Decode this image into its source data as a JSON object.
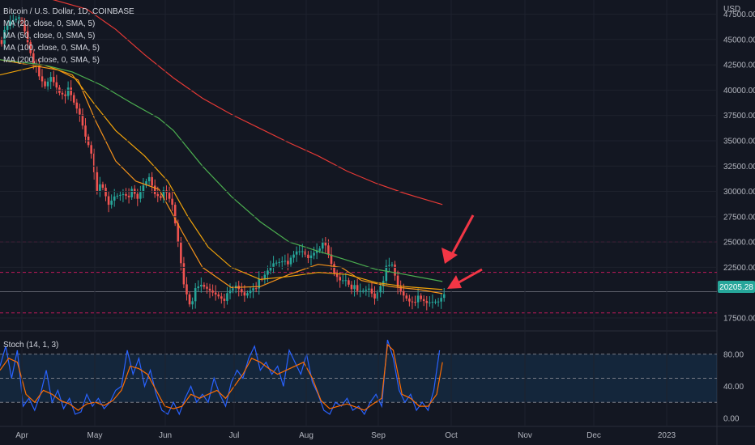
{
  "header": {
    "title": "Bitcoin / U.S. Dollar, 1D, COINBASE",
    "indicators": [
      "MA (20, close, 0, SMA, 5)",
      "MA (50, close, 0, SMA, 5)",
      "MA (100, close, 0, SMA, 5)",
      "MA (200, close, 0, SMA, 5)"
    ]
  },
  "colors": {
    "background": "#131722",
    "up": "#26a69a",
    "down": "#ef5350",
    "ma20": "#f7931a",
    "ma50": "#f0a30a",
    "ma100": "#4caf50",
    "ma200": "#e53935",
    "hline": "#c2185b",
    "stoch_k": "#2962ff",
    "stoch_d": "#ff6d00",
    "arrow": "#f23645",
    "price_badge": "#26a69a"
  },
  "chart_data": [
    {
      "type": "candlestick",
      "currency_label": "USD",
      "y_ticks": [
        "47500.00",
        "45000.00",
        "42500.00",
        "40000.00",
        "37500.00",
        "35000.00",
        "32500.00",
        "30000.00",
        "27500.00",
        "25000.00",
        "22500.00",
        "17500.00"
      ],
      "ylim": [
        16300,
        48900
      ],
      "last_price": "20205.28",
      "horizontal_lines": [
        25000,
        22000,
        20100,
        18000
      ],
      "close_series": [
        [
          0,
          45000
        ],
        [
          3,
          46500
        ],
        [
          6,
          47200
        ],
        [
          8,
          46000
        ],
        [
          11,
          43000
        ],
        [
          13,
          41000
        ],
        [
          15,
          40200
        ],
        [
          17,
          41300
        ],
        [
          20,
          40000
        ],
        [
          23,
          39800
        ],
        [
          25,
          38500
        ],
        [
          27,
          37500
        ],
        [
          29,
          35500
        ],
        [
          31,
          34000
        ],
        [
          33,
          30500
        ],
        [
          35,
          30000
        ],
        [
          37,
          28500
        ],
        [
          39,
          29500
        ],
        [
          42,
          30000
        ],
        [
          45,
          29800
        ],
        [
          47,
          29000
        ],
        [
          49,
          30500
        ],
        [
          51,
          31500
        ],
        [
          53,
          30000
        ],
        [
          55,
          29800
        ],
        [
          57,
          29500
        ],
        [
          59,
          28500
        ],
        [
          61,
          25000
        ],
        [
          63,
          21000
        ],
        [
          65,
          19200
        ],
        [
          67,
          20000
        ],
        [
          69,
          20500
        ],
        [
          72,
          20200
        ],
        [
          75,
          19900
        ],
        [
          78,
          19500
        ],
        [
          81,
          20500
        ],
        [
          84,
          19800
        ],
        [
          87,
          20800
        ],
        [
          90,
          21000
        ],
        [
          92,
          22000
        ],
        [
          94,
          22900
        ],
        [
          96,
          23200
        ],
        [
          98,
          23500
        ],
        [
          100,
          23000
        ],
        [
          102,
          23800
        ],
        [
          104,
          24000
        ],
        [
          106,
          23500
        ],
        [
          108,
          24200
        ],
        [
          110,
          24800
        ],
        [
          112,
          24300
        ],
        [
          113,
          23500
        ],
        [
          115,
          21800
        ],
        [
          117,
          21300
        ],
        [
          119,
          21500
        ],
        [
          121,
          20800
        ],
        [
          123,
          19800
        ],
        [
          125,
          20000
        ],
        [
          127,
          20400
        ],
        [
          129,
          19600
        ],
        [
          131,
          21000
        ],
        [
          133,
          22200
        ],
        [
          135,
          22500
        ],
        [
          137,
          20500
        ],
        [
          139,
          19800
        ],
        [
          141,
          19400
        ],
        [
          143,
          19500
        ],
        [
          145,
          19000
        ],
        [
          147,
          18800
        ],
        [
          149,
          19100
        ],
        [
          151,
          19300
        ],
        [
          153,
          20205
        ]
      ],
      "ma_series": [
        {
          "name": "MA 20",
          "points": [
            [
              0,
              43000
            ],
            [
              20,
              42000
            ],
            [
              27,
              41000
            ],
            [
              33,
              37000
            ],
            [
              40,
              33000
            ],
            [
              47,
              31000
            ],
            [
              55,
              30200
            ],
            [
              63,
              26000
            ],
            [
              70,
              22500
            ],
            [
              80,
              20500
            ],
            [
              90,
              20600
            ],
            [
              100,
              21800
            ],
            [
              110,
              22800
            ],
            [
              118,
              22500
            ],
            [
              125,
              21200
            ],
            [
              135,
              20600
            ],
            [
              145,
              20300
            ],
            [
              153,
              19900
            ]
          ]
        },
        {
          "name": "MA 50",
          "points": [
            [
              0,
              41500
            ],
            [
              15,
              42500
            ],
            [
              25,
              41500
            ],
            [
              33,
              38500
            ],
            [
              40,
              36000
            ],
            [
              50,
              33500
            ],
            [
              58,
              31000
            ],
            [
              65,
              27500
            ],
            [
              72,
              24500
            ],
            [
              80,
              22500
            ],
            [
              90,
              21300
            ],
            [
              100,
              21600
            ],
            [
              110,
              22000
            ],
            [
              120,
              21800
            ],
            [
              130,
              21000
            ],
            [
              140,
              20600
            ],
            [
              153,
              20300
            ]
          ]
        },
        {
          "name": "MA 100",
          "points": [
            [
              0,
              43000
            ],
            [
              15,
              42500
            ],
            [
              25,
              41800
            ],
            [
              35,
              40500
            ],
            [
              45,
              38800
            ],
            [
              55,
              37200
            ],
            [
              60,
              36000
            ],
            [
              70,
              32500
            ],
            [
              80,
              29500
            ],
            [
              90,
              27000
            ],
            [
              100,
              25000
            ],
            [
              110,
              24100
            ],
            [
              120,
              23200
            ],
            [
              130,
              22300
            ],
            [
              140,
              21800
            ],
            [
              153,
              21100
            ]
          ]
        },
        {
          "name": "MA 200",
          "points": [
            [
              0,
              50000
            ],
            [
              15,
              49200
            ],
            [
              30,
              48000
            ],
            [
              40,
              46000
            ],
            [
              50,
              43500
            ],
            [
              60,
              41200
            ],
            [
              70,
              39200
            ],
            [
              80,
              37600
            ],
            [
              90,
              36200
            ],
            [
              100,
              34800
            ],
            [
              110,
              33500
            ],
            [
              120,
              32000
            ],
            [
              130,
              30800
            ],
            [
              140,
              29800
            ],
            [
              153,
              28700
            ]
          ]
        }
      ]
    },
    {
      "type": "line",
      "title": "Stoch (14, 1, 3)",
      "y_ticks": [
        "80.00",
        "40.00",
        "0.00"
      ],
      "ylim": [
        0,
        100
      ],
      "bands": [
        80,
        50,
        20
      ],
      "series": [
        {
          "values": [
            [
              0,
              65
            ],
            [
              2,
              90
            ],
            [
              4,
              50
            ],
            [
              6,
              85
            ],
            [
              8,
              15
            ],
            [
              10,
              25
            ],
            [
              12,
              10
            ],
            [
              14,
              30
            ],
            [
              16,
              60
            ],
            [
              18,
              20
            ],
            [
              20,
              35
            ],
            [
              22,
              12
            ],
            [
              24,
              25
            ],
            [
              26,
              5
            ],
            [
              28,
              8
            ],
            [
              30,
              30
            ],
            [
              32,
              15
            ],
            [
              34,
              25
            ],
            [
              36,
              12
            ],
            [
              38,
              20
            ],
            [
              40,
              35
            ],
            [
              42,
              40
            ],
            [
              44,
              85
            ],
            [
              46,
              55
            ],
            [
              48,
              75
            ],
            [
              50,
              40
            ],
            [
              52,
              60
            ],
            [
              54,
              30
            ],
            [
              56,
              10
            ],
            [
              58,
              5
            ],
            [
              60,
              20
            ],
            [
              62,
              5
            ],
            [
              64,
              25
            ],
            [
              66,
              40
            ],
            [
              68,
              20
            ],
            [
              70,
              30
            ],
            [
              72,
              20
            ],
            [
              74,
              50
            ],
            [
              76,
              30
            ],
            [
              78,
              15
            ],
            [
              80,
              45
            ],
            [
              82,
              60
            ],
            [
              84,
              50
            ],
            [
              86,
              75
            ],
            [
              88,
              90
            ],
            [
              90,
              60
            ],
            [
              92,
              70
            ],
            [
              94,
              55
            ],
            [
              96,
              65
            ],
            [
              98,
              40
            ],
            [
              100,
              85
            ],
            [
              102,
              70
            ],
            [
              104,
              55
            ],
            [
              106,
              80
            ],
            [
              108,
              45
            ],
            [
              110,
              30
            ],
            [
              112,
              10
            ],
            [
              114,
              5
            ],
            [
              116,
              20
            ],
            [
              118,
              15
            ],
            [
              120,
              25
            ],
            [
              122,
              10
            ],
            [
              124,
              15
            ],
            [
              126,
              5
            ],
            [
              128,
              20
            ],
            [
              130,
              30
            ],
            [
              132,
              15
            ],
            [
              134,
              98
            ],
            [
              136,
              75
            ],
            [
              138,
              35
            ],
            [
              140,
              20
            ],
            [
              142,
              30
            ],
            [
              144,
              10
            ],
            [
              146,
              20
            ],
            [
              148,
              10
            ],
            [
              150,
              35
            ],
            [
              152,
              85
            ]
          ]
        },
        {
          "values": [
            [
              0,
              60
            ],
            [
              3,
              75
            ],
            [
              6,
              70
            ],
            [
              9,
              30
            ],
            [
              12,
              20
            ],
            [
              15,
              35
            ],
            [
              18,
              30
            ],
            [
              21,
              22
            ],
            [
              24,
              18
            ],
            [
              27,
              10
            ],
            [
              30,
              18
            ],
            [
              33,
              20
            ],
            [
              36,
              16
            ],
            [
              39,
              22
            ],
            [
              42,
              35
            ],
            [
              45,
              65
            ],
            [
              48,
              62
            ],
            [
              51,
              55
            ],
            [
              54,
              35
            ],
            [
              57,
              15
            ],
            [
              60,
              12
            ],
            [
              63,
              15
            ],
            [
              66,
              30
            ],
            [
              69,
              25
            ],
            [
              72,
              30
            ],
            [
              75,
              35
            ],
            [
              78,
              25
            ],
            [
              81,
              40
            ],
            [
              84,
              55
            ],
            [
              87,
              75
            ],
            [
              90,
              70
            ],
            [
              93,
              62
            ],
            [
              96,
              55
            ],
            [
              99,
              60
            ],
            [
              102,
              65
            ],
            [
              105,
              70
            ],
            [
              108,
              50
            ],
            [
              111,
              22
            ],
            [
              114,
              12
            ],
            [
              117,
              15
            ],
            [
              120,
              18
            ],
            [
              123,
              14
            ],
            [
              126,
              10
            ],
            [
              129,
              18
            ],
            [
              132,
              25
            ],
            [
              134,
              92
            ],
            [
              136,
              85
            ],
            [
              139,
              30
            ],
            [
              142,
              25
            ],
            [
              145,
              15
            ],
            [
              148,
              15
            ],
            [
              151,
              30
            ],
            [
              153,
              70
            ]
          ]
        }
      ]
    }
  ],
  "x_axis": [
    "Apr",
    "May",
    "Jun",
    "Jul",
    "Aug",
    "Sep",
    "Oct",
    "Nov",
    "Dec",
    "2023"
  ]
}
